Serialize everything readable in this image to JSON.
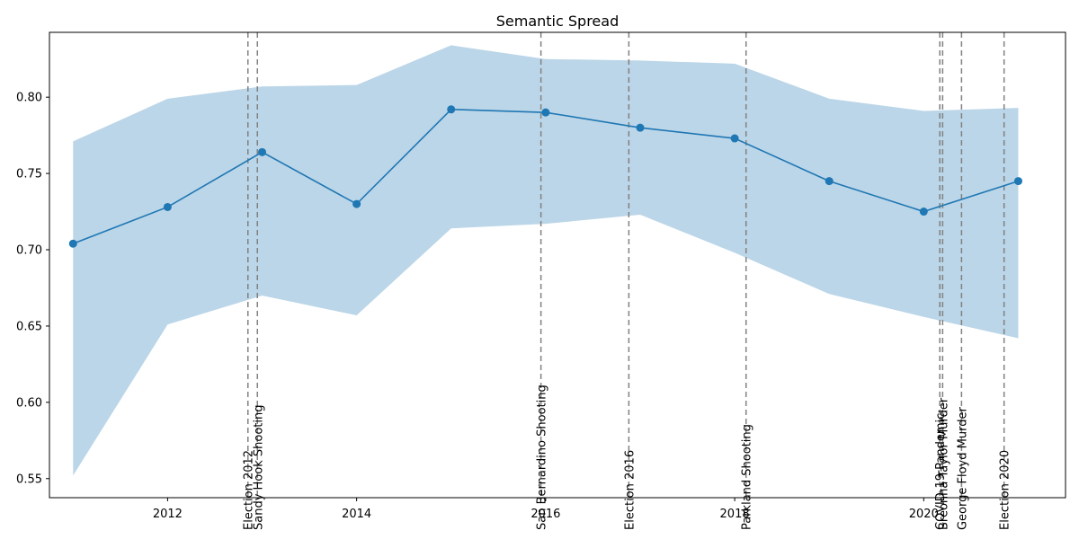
{
  "chart_data": {
    "type": "line",
    "title": "Semantic Spread",
    "xlabel": "",
    "ylabel": "",
    "xlim": [
      2010.75,
      2021.5
    ],
    "ylim": [
      0.5375,
      0.8425
    ],
    "x_ticks": [
      2012,
      2014,
      2016,
      2018,
      2020
    ],
    "y_ticks": [
      0.55,
      0.6,
      0.65,
      0.7,
      0.75,
      0.8
    ],
    "x_tick_labels": [
      "2012",
      "2014",
      "2016",
      "2018",
      "2020"
    ],
    "y_tick_labels": [
      "0.55",
      "0.60",
      "0.65",
      "0.70",
      "0.75",
      "0.80"
    ],
    "grid": false,
    "series": [
      {
        "x": [
          2011,
          2012,
          2013,
          2014,
          2015,
          2016,
          2017,
          2018,
          2019,
          2020,
          2021
        ],
        "values": [
          0.704,
          0.728,
          0.764,
          0.73,
          0.792,
          0.79,
          0.78,
          0.773,
          0.745,
          0.725,
          0.745
        ],
        "lower": [
          0.552,
          0.651,
          0.67,
          0.657,
          0.714,
          0.717,
          0.723,
          0.698,
          0.671,
          0.656,
          0.642
        ],
        "upper": [
          0.771,
          0.799,
          0.807,
          0.808,
          0.834,
          0.825,
          0.824,
          0.822,
          0.799,
          0.791,
          0.793
        ],
        "color": "#1f77b4",
        "band_color": "#1f77b4"
      }
    ],
    "events": [
      {
        "x": 2012.85,
        "label": "Election 2012"
      },
      {
        "x": 2012.95,
        "label": "Sandy Hook Shooting"
      },
      {
        "x": 2015.95,
        "label": "San Bernardino Shooting"
      },
      {
        "x": 2016.88,
        "label": "Election 2016"
      },
      {
        "x": 2018.12,
        "label": "Parkland Shooting"
      },
      {
        "x": 2020.17,
        "label": "COVID-19 Pandemic"
      },
      {
        "x": 2020.2,
        "label": "Breonna Taylor Murder"
      },
      {
        "x": 2020.4,
        "label": "George Floyd Murder"
      },
      {
        "x": 2020.85,
        "label": "Election 2020"
      }
    ],
    "event_line_color": "#808080"
  }
}
